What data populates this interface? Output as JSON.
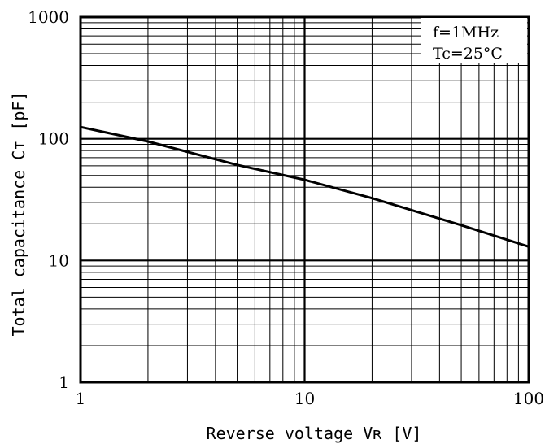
{
  "chart_data": {
    "type": "line",
    "xscale": "log",
    "yscale": "log",
    "xlim": [
      1,
      100
    ],
    "ylim": [
      1,
      1000
    ],
    "grid": true,
    "x_ticks": [
      {
        "value": 1,
        "label": "1"
      },
      {
        "value": 10,
        "label": "10"
      },
      {
        "value": 100,
        "label": "100"
      }
    ],
    "y_ticks": [
      {
        "value": 1,
        "label": "1"
      },
      {
        "value": 10,
        "label": "10"
      },
      {
        "value": 100,
        "label": "100"
      },
      {
        "value": 1000,
        "label": "1000"
      }
    ],
    "xlabel": "Reverse voltage Vʀ [V]",
    "ylabel": "Total capacitance Cᴛ [pF]",
    "annotations": [
      "f=1MHz",
      "Tc=25°C"
    ],
    "series": [
      {
        "color": "#000000",
        "x": [
          1,
          2,
          5,
          10,
          20,
          50,
          100
        ],
        "y": [
          125,
          95,
          61,
          46,
          32.5,
          19.5,
          13
        ]
      }
    ]
  }
}
